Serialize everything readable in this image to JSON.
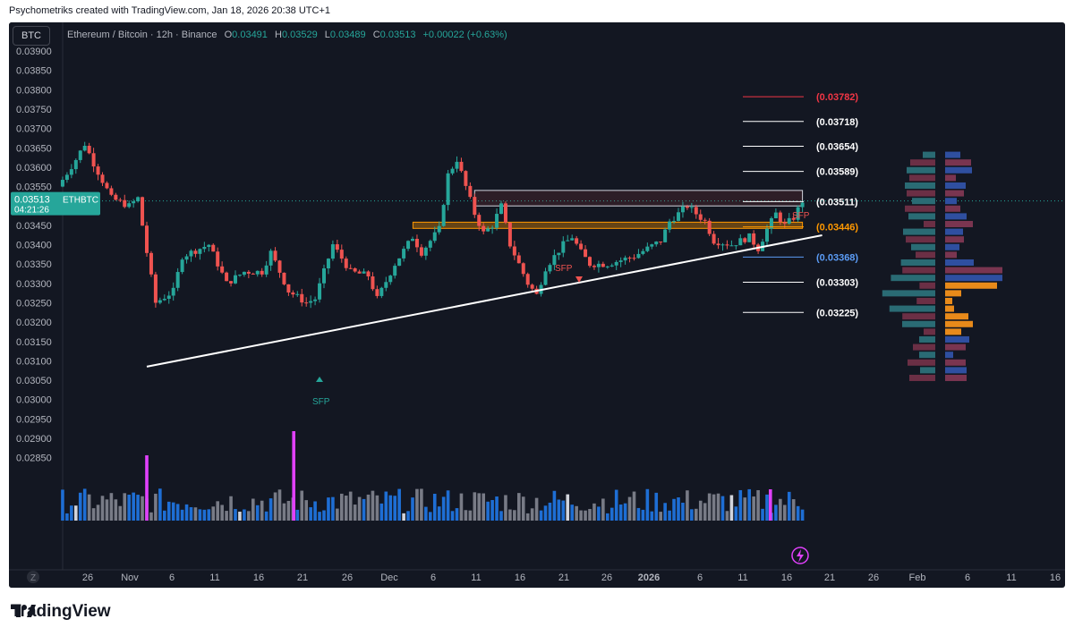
{
  "caption": "Psychometriks created with TradingView.com, Jan 18, 2026 20:38 UTC+1",
  "symbol_badge": "BTC",
  "legend": {
    "pair": "Ethereum / Bitcoin · 12h · Binance",
    "o_label": "O",
    "o": "0.03491",
    "h_label": "H",
    "h": "0.03529",
    "l_label": "L",
    "l": "0.03489",
    "c_label": "C",
    "c": "0.03513",
    "change": "+0.00022 (+0.63%)"
  },
  "last_price": {
    "value": "0.03513",
    "ticker": "ETHBTC",
    "countdown": "04:21:26"
  },
  "footer_logo": "TradingView",
  "colors": {
    "background": "#131722",
    "up": "#26a69a",
    "down": "#ef5350",
    "volume_blue": "#1e6ed4",
    "volume_gray": "#787b86",
    "volume_magenta": "#e040fb",
    "zone_orange": "#ff9800",
    "level_red": "#f23645",
    "level_blue": "#5b9cf6"
  },
  "chart_data": {
    "type": "candlestick",
    "title": "Ethereum / Bitcoin · 12h · Binance",
    "ylim": [
      0.0283,
      0.0392
    ],
    "y_ticks": [
      "0.03900",
      "0.03850",
      "0.03800",
      "0.03750",
      "0.03700",
      "0.03650",
      "0.03600",
      "0.03550",
      "0.03500",
      "0.03450",
      "0.03400",
      "0.03350",
      "0.03300",
      "0.03250",
      "0.03200",
      "0.03150",
      "0.03100",
      "0.03050",
      "0.03000",
      "0.02950",
      "0.02900",
      "0.02850"
    ],
    "x_ticks": [
      "26",
      "Nov",
      "6",
      "11",
      "16",
      "21",
      "26",
      "Dec",
      "6",
      "11",
      "16",
      "21",
      "26",
      "2026",
      "6",
      "11",
      "16",
      "21",
      "26",
      "Feb",
      "6",
      "11",
      "16"
    ],
    "series_anchors": [
      {
        "date": "Oct 26",
        "price": 0.0355
      },
      {
        "date": "Oct 28",
        "price": 0.0362
      },
      {
        "date": "Oct 29",
        "price": 0.0366
      },
      {
        "date": "Oct 30",
        "price": 0.0361
      },
      {
        "date": "Nov 1",
        "price": 0.0352
      },
      {
        "date": "Nov 3",
        "price": 0.035
      },
      {
        "date": "Nov 4",
        "price": 0.0352
      },
      {
        "date": "Nov 5",
        "price": 0.0338
      },
      {
        "date": "Nov 6",
        "price": 0.0325
      },
      {
        "date": "Nov 8",
        "price": 0.0328
      },
      {
        "date": "Nov 9",
        "price": 0.0337
      },
      {
        "date": "Nov 12",
        "price": 0.034
      },
      {
        "date": "Nov 14",
        "price": 0.033
      },
      {
        "date": "Nov 16",
        "price": 0.0333
      },
      {
        "date": "Nov 18",
        "price": 0.0333
      },
      {
        "date": "Nov 19",
        "price": 0.0338
      },
      {
        "date": "Nov 21",
        "price": 0.0328
      },
      {
        "date": "Nov 23",
        "price": 0.0325
      },
      {
        "date": "Nov 24",
        "price": 0.0326
      },
      {
        "date": "Nov 26",
        "price": 0.034
      },
      {
        "date": "Nov 28",
        "price": 0.0333
      },
      {
        "date": "Nov 30",
        "price": 0.0332
      },
      {
        "date": "Dec 1",
        "price": 0.0326
      },
      {
        "date": "Dec 3",
        "price": 0.0335
      },
      {
        "date": "Dec 5",
        "price": 0.0342
      },
      {
        "date": "Dec 6",
        "price": 0.0338
      },
      {
        "date": "Dec 8",
        "price": 0.0344
      },
      {
        "date": "Dec 9",
        "price": 0.0358
      },
      {
        "date": "Dec 10",
        "price": 0.0362
      },
      {
        "date": "Dec 11",
        "price": 0.0355
      },
      {
        "date": "Dec 12",
        "price": 0.0348
      },
      {
        "date": "Dec 13",
        "price": 0.0343
      },
      {
        "date": "Dec 14",
        "price": 0.0345
      },
      {
        "date": "Dec 15",
        "price": 0.035
      },
      {
        "date": "Dec 16",
        "price": 0.034
      },
      {
        "date": "Dec 18",
        "price": 0.033
      },
      {
        "date": "Dec 19",
        "price": 0.0327
      },
      {
        "date": "Dec 20",
        "price": 0.0334
      },
      {
        "date": "Dec 22",
        "price": 0.034
      },
      {
        "date": "Dec 23",
        "price": 0.0342
      },
      {
        "date": "Dec 24",
        "price": 0.0338
      },
      {
        "date": "Dec 25",
        "price": 0.0335
      },
      {
        "date": "Dec 27",
        "price": 0.0335
      },
      {
        "date": "Dec 30",
        "price": 0.0337
      },
      {
        "date": "Jan 2",
        "price": 0.0341
      },
      {
        "date": "Jan 3",
        "price": 0.0346
      },
      {
        "date": "Jan 5",
        "price": 0.035
      },
      {
        "date": "Jan 7",
        "price": 0.0346
      },
      {
        "date": "Jan 8",
        "price": 0.0341
      },
      {
        "date": "Jan 10",
        "price": 0.034
      },
      {
        "date": "Jan 12",
        "price": 0.0342
      },
      {
        "date": "Jan 13",
        "price": 0.0339
      },
      {
        "date": "Jan 14",
        "price": 0.0344
      },
      {
        "date": "Jan 15",
        "price": 0.0348
      },
      {
        "date": "Jan 16",
        "price": 0.0345
      },
      {
        "date": "Jan 17",
        "price": 0.0347
      },
      {
        "date": "Jan 18",
        "price": 0.03513
      }
    ],
    "trendline": [
      {
        "date": "Nov 5",
        "price": 0.03085
      },
      {
        "date": "Jan 18",
        "price": 0.03415
      }
    ],
    "resistance_box": {
      "from": "Dec 12",
      "to": "Jan 18",
      "low": 0.035,
      "high": 0.0354
    },
    "orange_zone": {
      "from": "Dec 1",
      "to": "Jan 18",
      "low": 0.03442,
      "high": 0.03458
    },
    "levels": [
      {
        "label": "(0.03782)",
        "value": 0.03782,
        "color": "red"
      },
      {
        "label": "(0.03718)",
        "value": 0.03718,
        "color": "white"
      },
      {
        "label": "(0.03654)",
        "value": 0.03654,
        "color": "white"
      },
      {
        "label": "(0.03589)",
        "value": 0.03589,
        "color": "white"
      },
      {
        "label": "(0.03511)",
        "value": 0.03511,
        "color": "white"
      },
      {
        "label": "(0.03446)",
        "value": 0.03446,
        "color": "orange"
      },
      {
        "label": "(0.03368)",
        "value": 0.03368,
        "color": "blue"
      },
      {
        "label": "(0.03303)",
        "value": 0.03303,
        "color": "white"
      },
      {
        "label": "(0.03225)",
        "value": 0.03225,
        "color": "white"
      }
    ],
    "annotations": [
      "SFP",
      "SFP",
      "SFP"
    ]
  }
}
